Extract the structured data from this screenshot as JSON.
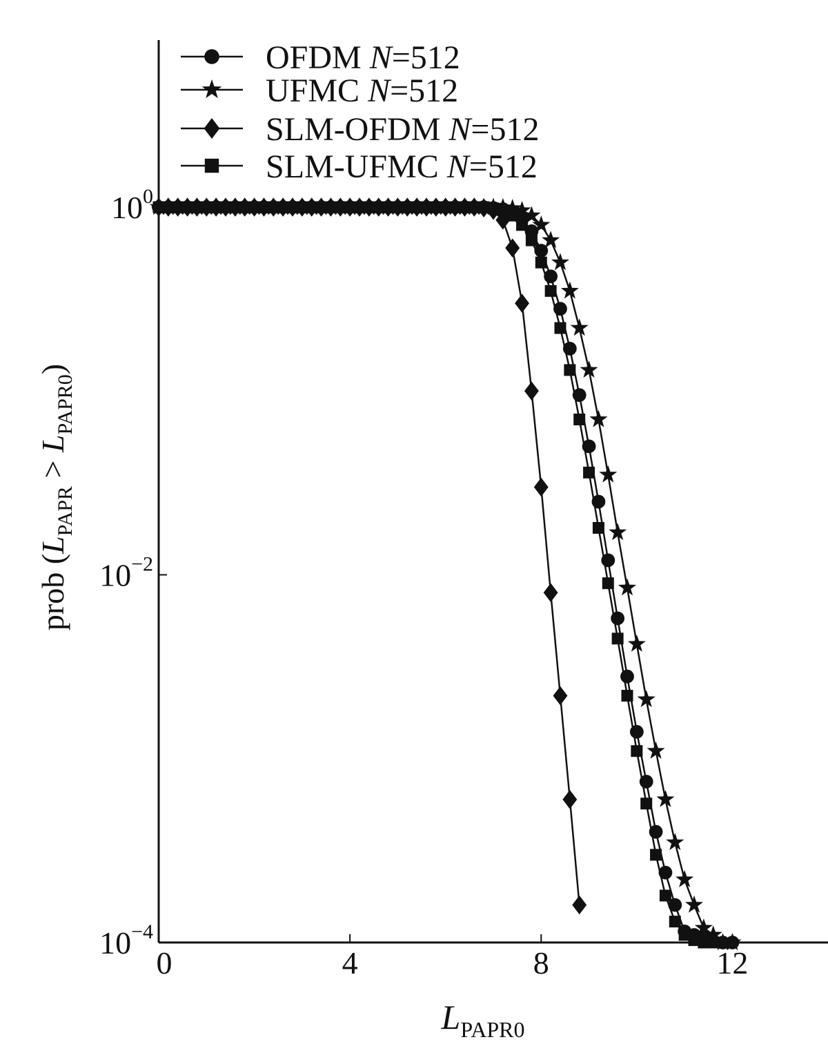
{
  "chart_data": {
    "type": "line",
    "xlabel": {
      "main": "L",
      "sub": "PAPR0"
    },
    "ylabel": {
      "prefix": "prob (",
      "l1": "L",
      "s1": "PAPR",
      "gt": " > ",
      "l2": "L",
      "s2": "PAPR0",
      "suffix": ")"
    },
    "xlim": [
      0,
      14
    ],
    "xticks": [
      {
        "value": 0,
        "label": "0"
      },
      {
        "value": 4,
        "label": "4"
      },
      {
        "value": 8,
        "label": "8"
      },
      {
        "value": 12,
        "label": "12"
      }
    ],
    "y_scale": "log",
    "ylim": [
      0.0001,
      1
    ],
    "yticks": [
      {
        "value": 1,
        "base": "10",
        "exp": "0"
      },
      {
        "value": 0.01,
        "base": "10",
        "exp": "−2"
      },
      {
        "value": 0.0001,
        "base": "10",
        "exp": "−4"
      }
    ],
    "legend_position": "top-left",
    "series": [
      {
        "name": "OFDM",
        "n_label": "N",
        "n_value": "=512",
        "marker": "circle",
        "x": [
          0,
          0.2,
          0.4,
          0.6,
          0.8,
          1.0,
          1.2,
          1.4,
          1.6,
          1.8,
          2.0,
          2.2,
          2.4,
          2.6,
          2.8,
          3.0,
          3.2,
          3.4,
          3.6,
          3.8,
          4.0,
          4.2,
          4.4,
          4.6,
          4.8,
          5.0,
          5.2,
          5.4,
          5.6,
          5.8,
          6.0,
          6.2,
          6.4,
          6.6,
          6.8,
          7.0,
          7.2,
          7.4,
          7.6,
          7.8,
          8.0,
          8.2,
          8.4,
          8.6,
          8.8,
          9.0,
          9.2,
          9.4,
          9.6,
          9.8,
          10.0,
          10.2,
          10.4,
          10.6,
          10.8,
          11.0,
          11.2,
          11.4,
          11.6,
          11.8,
          12.0
        ],
        "y": [
          1,
          1,
          1,
          1,
          1,
          1,
          1,
          1,
          1,
          1,
          1,
          1,
          1,
          1,
          1,
          1,
          1,
          1,
          1,
          1,
          1,
          1,
          1,
          1,
          1,
          1,
          1,
          1,
          1,
          1,
          1,
          1,
          1,
          1,
          1,
          0.99,
          0.975,
          0.94,
          0.86,
          0.74,
          0.58,
          0.42,
          0.28,
          0.17,
          0.095,
          0.05,
          0.025,
          0.012,
          0.0058,
          0.0028,
          0.0014,
          0.00075,
          0.0004,
          0.00024,
          0.00016,
          0.000115,
          0.00011,
          0.000105,
          0.000102,
          0.0001,
          0.0001
        ]
      },
      {
        "name": "UFMC",
        "n_label": "N",
        "n_value": "=512",
        "marker": "star",
        "x": [
          0,
          0.2,
          0.4,
          0.6,
          0.8,
          1.0,
          1.2,
          1.4,
          1.6,
          1.8,
          2.0,
          2.2,
          2.4,
          2.6,
          2.8,
          3.0,
          3.2,
          3.4,
          3.6,
          3.8,
          4.0,
          4.2,
          4.4,
          4.6,
          4.8,
          5.0,
          5.2,
          5.4,
          5.6,
          5.8,
          6.0,
          6.2,
          6.4,
          6.6,
          6.8,
          7.0,
          7.2,
          7.4,
          7.6,
          7.8,
          8.0,
          8.2,
          8.4,
          8.6,
          8.8,
          9.0,
          9.2,
          9.4,
          9.6,
          9.8,
          10.0,
          10.2,
          10.4,
          10.6,
          10.8,
          11.0,
          11.2,
          11.4,
          11.6,
          11.8,
          12.0
        ],
        "y": [
          1,
          1,
          1,
          1,
          1,
          1,
          1,
          1,
          1,
          1,
          1,
          1,
          1,
          1,
          1,
          1,
          1,
          1,
          1,
          1,
          1,
          1,
          1,
          1,
          1,
          1,
          1,
          1,
          1,
          1,
          1,
          1,
          1,
          1,
          1,
          1,
          0.995,
          0.985,
          0.96,
          0.9,
          0.8,
          0.66,
          0.5,
          0.35,
          0.22,
          0.13,
          0.07,
          0.035,
          0.017,
          0.0085,
          0.0042,
          0.0021,
          0.0011,
          0.0006,
          0.00035,
          0.00022,
          0.00016,
          0.00012,
          0.00011,
          0.0001,
          0.0001
        ]
      },
      {
        "name": "SLM-OFDM",
        "n_label": "N",
        "n_value": "=512",
        "marker": "diamond",
        "x": [
          0,
          0.2,
          0.4,
          0.6,
          0.8,
          1.0,
          1.2,
          1.4,
          1.6,
          1.8,
          2.0,
          2.2,
          2.4,
          2.6,
          2.8,
          3.0,
          3.2,
          3.4,
          3.6,
          3.8,
          4.0,
          4.2,
          4.4,
          4.6,
          4.8,
          5.0,
          5.2,
          5.4,
          5.6,
          5.8,
          6.0,
          6.2,
          6.4,
          6.6,
          6.8,
          7.0,
          7.2,
          7.4,
          7.6,
          7.8,
          8.0,
          8.2,
          8.4,
          8.6,
          8.8
        ],
        "y": [
          1,
          1,
          1,
          1,
          1,
          1,
          1,
          1,
          1,
          1,
          1,
          1,
          1,
          1,
          1,
          1,
          1,
          1,
          1,
          1,
          1,
          1,
          1,
          1,
          1,
          1,
          1,
          1,
          1,
          1,
          1,
          1,
          1,
          1,
          0.99,
          0.96,
          0.85,
          0.6,
          0.3,
          0.1,
          0.03,
          0.008,
          0.0022,
          0.0006,
          0.00016
        ]
      },
      {
        "name": "SLM-UFMC",
        "n_label": "N",
        "n_value": "=512",
        "marker": "square",
        "x": [
          0,
          0.2,
          0.4,
          0.6,
          0.8,
          1.0,
          1.2,
          1.4,
          1.6,
          1.8,
          2.0,
          2.2,
          2.4,
          2.6,
          2.8,
          3.0,
          3.2,
          3.4,
          3.6,
          3.8,
          4.0,
          4.2,
          4.4,
          4.6,
          4.8,
          5.0,
          5.2,
          5.4,
          5.6,
          5.8,
          6.0,
          6.2,
          6.4,
          6.6,
          6.8,
          7.0,
          7.2,
          7.4,
          7.6,
          7.8,
          8.0,
          8.2,
          8.4,
          8.6,
          8.8,
          9.0,
          9.2,
          9.4,
          9.6,
          9.8,
          10.0,
          10.2,
          10.4,
          10.6,
          10.8,
          11.0,
          11.2,
          11.4,
          11.6
        ],
        "y": [
          1,
          1,
          1,
          1,
          1,
          1,
          1,
          1,
          1,
          1,
          1,
          1,
          1,
          1,
          1,
          1,
          1,
          1,
          1,
          1,
          1,
          1,
          1,
          1,
          1,
          1,
          1,
          1,
          1,
          1,
          1,
          1,
          1,
          1,
          1,
          0.985,
          0.96,
          0.9,
          0.8,
          0.66,
          0.5,
          0.35,
          0.22,
          0.13,
          0.07,
          0.036,
          0.018,
          0.009,
          0.0045,
          0.0022,
          0.0011,
          0.00057,
          0.0003,
          0.00018,
          0.00013,
          0.00011,
          0.000103,
          0.0001,
          0.0001
        ]
      }
    ]
  }
}
